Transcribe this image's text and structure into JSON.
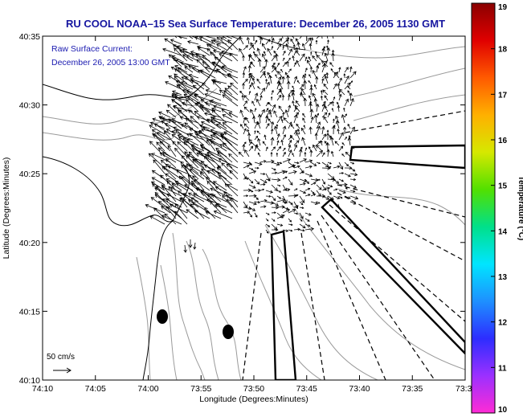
{
  "title": "RU COOL  NOAA–15  Sea Surface Temperature:  December 26, 2005 1130 GMT",
  "subtitle_line1": "Raw Surface Current:",
  "subtitle_line2": "December 26, 2005 13:00 GMT",
  "x_axis_label": "Longitude (Degrees:Minutes)",
  "y_axis_label": "Latitude (Degrees:Minutes)",
  "x_ticks": [
    "74:10",
    "74:05",
    "74:00",
    "73:55",
    "73:50",
    "73:45",
    "73:40",
    "73:35",
    "73:3"
  ],
  "y_ticks": [
    "40:35",
    "40:30",
    "40:25",
    "40:20",
    "40:15",
    "40:10"
  ],
  "colorbar": {
    "label": "Temperature (°C)",
    "ticks": [
      "19",
      "18",
      "17",
      "16",
      "15",
      "14",
      "13",
      "12",
      "11",
      "10"
    ],
    "min": 10,
    "max": 19,
    "colors": [
      "#ff2bd5",
      "#9b30ff",
      "#2d2dff",
      "#1e90ff",
      "#00e5ff",
      "#00e08a",
      "#52e000",
      "#d6e800",
      "#ffb000",
      "#ff5a00",
      "#e00000",
      "#8a0000"
    ]
  },
  "scale_label": "50 cm/s",
  "colors": {
    "title": "#1616a0",
    "subtitle": "#1a1ab0",
    "coast": "#000000",
    "bathymetry": "#9a9a9a"
  }
}
